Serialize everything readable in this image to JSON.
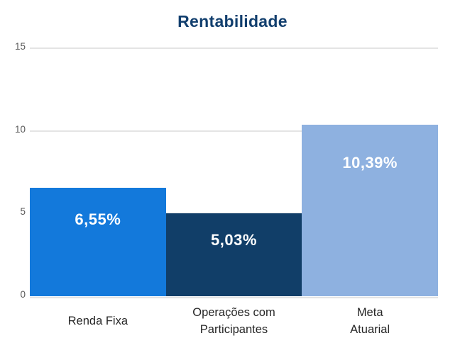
{
  "chart_data": {
    "type": "bar",
    "title": "Rentabilidade",
    "categories": [
      "Renda Fixa",
      "Operações com\nParticipantes",
      "Meta\nAtuarial"
    ],
    "values": [
      6.55,
      5.03,
      10.39
    ],
    "value_labels": [
      "6,55%",
      "5,03%",
      "10,39%"
    ],
    "bar_colors": [
      "#1379db",
      "#113e68",
      "#8eb1e0"
    ],
    "yticks": [
      0,
      5,
      10,
      15
    ],
    "ytick_labels": [
      "0",
      "5",
      "10",
      "15"
    ],
    "ylim": [
      0,
      15
    ],
    "xlabel": "",
    "ylabel": "",
    "grid": true,
    "legend": "none",
    "colors": {
      "title": "#123f6e",
      "gridline": "#e4e4e4",
      "tick_label": "#595959",
      "category_label": "#262626",
      "value_label": "#ffffff",
      "background": "#ffffff"
    }
  }
}
